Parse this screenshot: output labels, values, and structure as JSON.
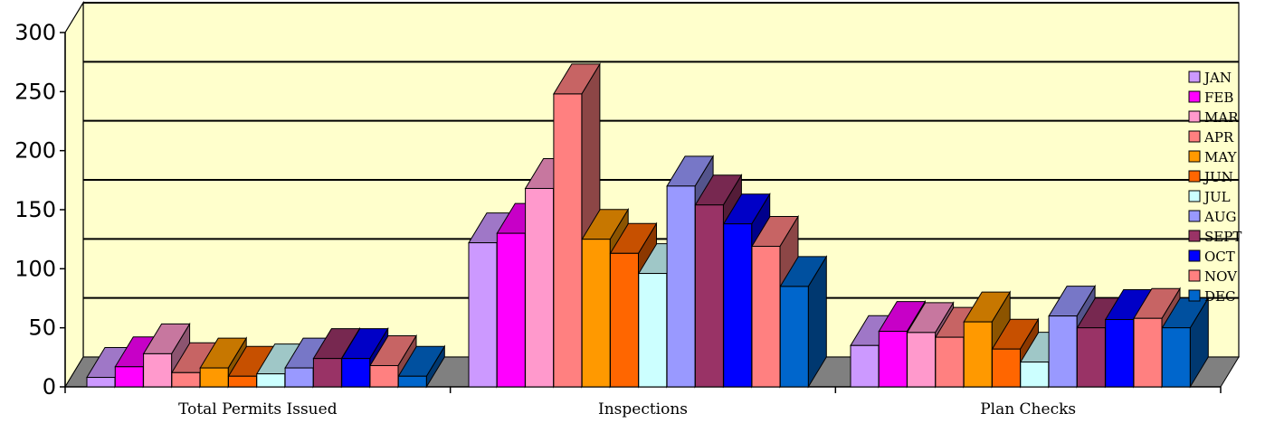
{
  "chart_data": {
    "type": "bar",
    "three_d": true,
    "categories": [
      "Total Permits Issued",
      "Inspections",
      "Plan Checks"
    ],
    "ylim": [
      0,
      300
    ],
    "yticks": [
      0,
      50,
      100,
      150,
      200,
      250,
      300
    ],
    "grid": true,
    "legend_position": "right",
    "series": [
      {
        "name": "JAN",
        "color": "#CC99FF",
        "values": [
          8,
          122,
          35
        ]
      },
      {
        "name": "FEB",
        "color": "#FF00FF",
        "values": [
          17,
          130,
          47
        ]
      },
      {
        "name": "MAR",
        "color": "#FF99CC",
        "values": [
          28,
          168,
          46
        ]
      },
      {
        "name": "APR",
        "color": "#FF8080",
        "values": [
          12,
          248,
          42
        ]
      },
      {
        "name": "MAY",
        "color": "#FF9900",
        "values": [
          16,
          125,
          55
        ]
      },
      {
        "name": "JUN",
        "color": "#FF6600",
        "values": [
          9,
          113,
          32
        ]
      },
      {
        "name": "JUL",
        "color": "#CCFFFF",
        "values": [
          11,
          96,
          21
        ]
      },
      {
        "name": "AUG",
        "color": "#9999FF",
        "values": [
          16,
          170,
          60
        ]
      },
      {
        "name": "SEPT",
        "color": "#993366",
        "values": [
          24,
          154,
          50
        ]
      },
      {
        "name": "OCT",
        "color": "#0000FF",
        "values": [
          24,
          138,
          57
        ]
      },
      {
        "name": "NOV",
        "color": "#FF8080",
        "values": [
          18,
          119,
          58
        ]
      },
      {
        "name": "DEC",
        "color": "#0066CC",
        "values": [
          9,
          85,
          50
        ]
      }
    ]
  },
  "colors": {
    "wall": "#FFFFCC",
    "floor": "#808080",
    "grid": "#000000"
  }
}
